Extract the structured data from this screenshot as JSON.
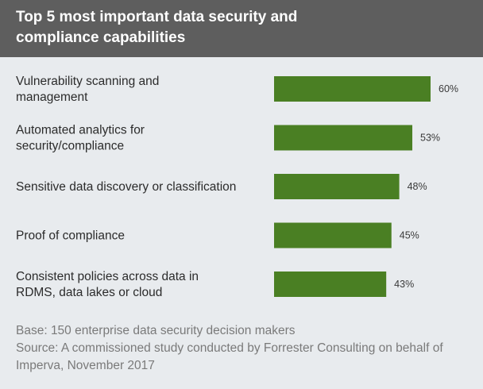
{
  "chart_data": {
    "type": "bar",
    "orientation": "horizontal",
    "title": "Top 5 most important data security and compliance capabilities",
    "categories": [
      [
        "Vulnerability scanning and",
        "management"
      ],
      [
        "Automated analytics for",
        "security/compliance"
      ],
      [
        "Sensitive data discovery or classification"
      ],
      [
        "Proof of compliance"
      ],
      [
        "Consistent policies across data in",
        "RDMS, data lakes or cloud"
      ]
    ],
    "values": [
      60,
      53,
      48,
      45,
      43
    ],
    "value_labels": [
      "60%",
      "53%",
      "48%",
      "45%",
      "43%"
    ],
    "unit": "%",
    "grid": false,
    "bar_color": "#4a7f23",
    "label_color": "#2b2b2b",
    "value_label_color": "#3a3a3a"
  },
  "footer": {
    "base": "Base: 150 enterprise data security decision makers",
    "source_line1": "Source: A commissioned study conducted by Forrester Consulting on behalf of",
    "source_line2": "Imperva, November 2017"
  },
  "colors": {
    "header_background": "#5e5e5e",
    "page_background": "#e8ebee",
    "footer_text": "#7a7a7a"
  }
}
